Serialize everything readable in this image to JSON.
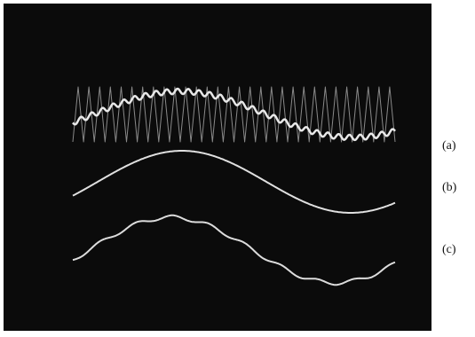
{
  "traces": [
    {
      "label": "(a)"
    },
    {
      "label": "(b)"
    },
    {
      "label": "(c)"
    }
  ]
}
